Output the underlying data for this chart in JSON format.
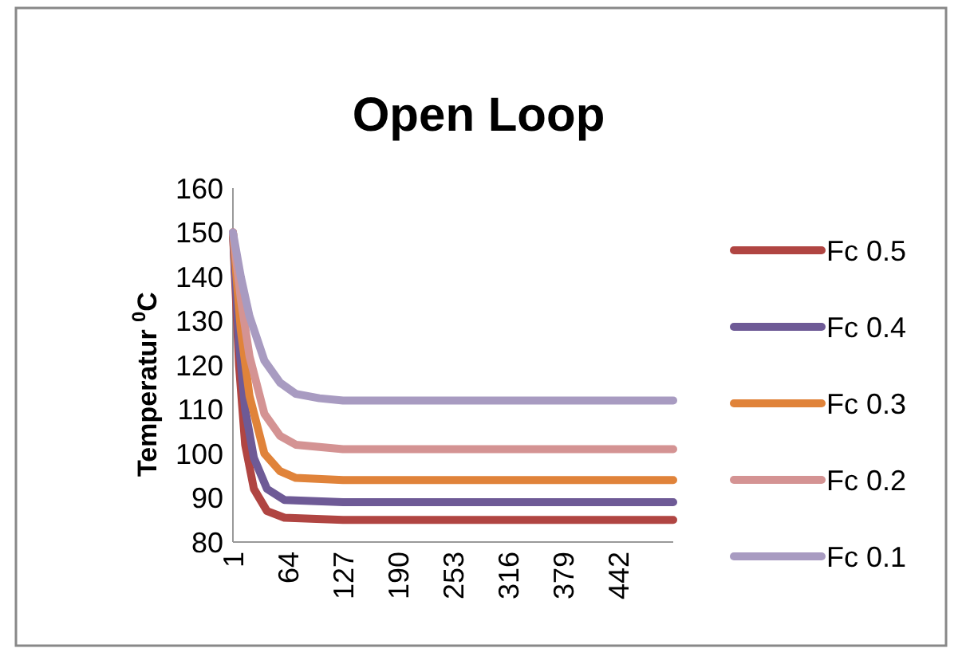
{
  "chart_data": {
    "type": "line",
    "title": "Open Loop",
    "ylabel": "Temperatur $^{0}$C",
    "xlim": [
      1,
      505
    ],
    "xticks": [
      1,
      64,
      127,
      190,
      253,
      316,
      379,
      442
    ],
    "ylim": [
      80,
      160
    ],
    "yticks": [
      80,
      90,
      100,
      110,
      120,
      130,
      140,
      150,
      160
    ],
    "grid": false,
    "legend": "right",
    "marker": "none",
    "line_style": "solid",
    "series": [
      {
        "name": "Fc 0.5",
        "color": "#b04542",
        "x": [
          1,
          8,
          15,
          25,
          40,
          60,
          127,
          505
        ],
        "values": [
          150,
          120,
          102,
          92,
          87,
          85.5,
          85,
          85
        ]
      },
      {
        "name": "Fc 0.4",
        "color": "#6e5a96",
        "x": [
          1,
          8,
          15,
          25,
          40,
          60,
          127,
          505
        ],
        "values": [
          150,
          125,
          110,
          99,
          92,
          89.5,
          89,
          89
        ]
      },
      {
        "name": "Fc 0.3",
        "color": "#e0833a",
        "x": [
          1,
          10,
          20,
          37,
          55,
          73,
          127,
          505
        ],
        "values": [
          150,
          128,
          113,
          100,
          96,
          94.5,
          94,
          94
        ]
      },
      {
        "name": "Fc 0.2",
        "color": "#d49393",
        "x": [
          1,
          10,
          20,
          37,
          55,
          73,
          127,
          505
        ],
        "values": [
          150,
          135,
          122,
          109,
          104,
          102,
          101,
          101
        ]
      },
      {
        "name": "Fc 0.1",
        "color": "#a89bc1",
        "x": [
          1,
          10,
          20,
          37,
          55,
          73,
          100,
          127,
          505
        ],
        "values": [
          150,
          140,
          131,
          121,
          116,
          113.5,
          112.5,
          112,
          112
        ]
      }
    ]
  }
}
